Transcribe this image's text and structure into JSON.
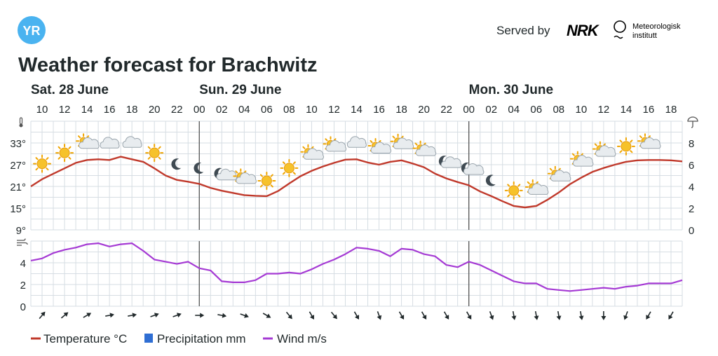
{
  "header": {
    "logo_text": "YR",
    "served_by": "Served by",
    "nrk_logo": "NRK",
    "met_logo_line1": "Meteorologisk",
    "met_logo_line2": "institutt",
    "title": "Weather forecast for Brachwitz"
  },
  "icons": {
    "temperature_axis": "thermometer-icon",
    "precipitation_axis": "umbrella-icon",
    "wind_axis": "wind-icon"
  },
  "colors": {
    "temperature": "#c0392b",
    "precipitation": "#2f6ed3",
    "wind": "#a53ad4",
    "grid": "#d6dde3",
    "day_divider": "#555555",
    "logo_bg": "#4ab3f0"
  },
  "chart_data": {
    "type": "line",
    "title": "Weather forecast for Brachwitz",
    "day_labels": [
      {
        "label": "Sat. 28 June",
        "start_hour": 9
      },
      {
        "label": "Sun. 29 June",
        "start_hour": 24
      },
      {
        "label": "Mon. 30 June",
        "start_hour": 48
      }
    ],
    "x_hours_from_sat_00": {
      "start": 9,
      "end": 67
    },
    "x_tick_labels": [
      "10",
      "12",
      "14",
      "16",
      "18",
      "20",
      "22",
      "00",
      "02",
      "04",
      "06",
      "08",
      "10",
      "12",
      "14",
      "16",
      "18",
      "20",
      "22",
      "00",
      "02",
      "04",
      "06",
      "08",
      "10",
      "12",
      "14",
      "16",
      "18"
    ],
    "x_tick_hours": [
      10,
      12,
      14,
      16,
      18,
      20,
      22,
      24,
      26,
      28,
      30,
      32,
      34,
      36,
      38,
      40,
      42,
      44,
      46,
      48,
      50,
      52,
      54,
      56,
      58,
      60,
      62,
      64,
      66
    ],
    "temperature_axis": {
      "unit": "°C",
      "ylim": [
        9,
        39
      ],
      "ticks": [
        9,
        15,
        21,
        27,
        33
      ]
    },
    "precipitation_axis": {
      "unit": "mm",
      "ylim": [
        0,
        10
      ],
      "ticks": [
        0,
        2,
        4,
        6,
        8
      ]
    },
    "wind_axis": {
      "unit": "m/s",
      "ylim": [
        0,
        6
      ],
      "ticks": [
        0,
        2,
        4
      ]
    },
    "series": [
      {
        "name": "Temperature °C",
        "hours": [
          9,
          10,
          11,
          12,
          13,
          14,
          15,
          16,
          17,
          18,
          19,
          20,
          21,
          22,
          23,
          24,
          25,
          26,
          27,
          28,
          29,
          30,
          31,
          32,
          33,
          34,
          35,
          36,
          37,
          38,
          39,
          40,
          41,
          42,
          43,
          44,
          45,
          46,
          47,
          48,
          49,
          50,
          51,
          52,
          53,
          54,
          55,
          56,
          57,
          58,
          59,
          60,
          61,
          62,
          63,
          64,
          65,
          66,
          67
        ],
        "values": [
          21,
          23,
          24.5,
          26,
          27.5,
          28.3,
          28.5,
          28.3,
          29.2,
          28.5,
          27.8,
          26,
          24,
          22.8,
          22.3,
          21.7,
          20.6,
          19.8,
          19.2,
          18.6,
          18.4,
          18.3,
          19.7,
          21.8,
          23.8,
          25.3,
          26.5,
          27.5,
          28.4,
          28.5,
          27.6,
          27,
          27.8,
          28.2,
          27.3,
          26.3,
          24.5,
          23.2,
          22.2,
          21.3,
          19.6,
          18.3,
          16.9,
          15.6,
          15.2,
          15.6,
          17.3,
          19.3,
          21.6,
          23.4,
          25,
          26.1,
          27,
          27.8,
          28.2,
          28.3,
          28.3,
          28.2,
          27.9
        ]
      },
      {
        "name": "Precipitation mm",
        "hours": [],
        "values": []
      },
      {
        "name": "Wind m/s",
        "hours": [
          9,
          10,
          11,
          12,
          13,
          14,
          15,
          16,
          17,
          18,
          19,
          20,
          21,
          22,
          23,
          24,
          25,
          26,
          27,
          28,
          29,
          30,
          31,
          32,
          33,
          34,
          35,
          36,
          37,
          38,
          39,
          40,
          41,
          42,
          43,
          44,
          45,
          46,
          47,
          48,
          49,
          50,
          51,
          52,
          53,
          54,
          55,
          56,
          57,
          58,
          59,
          60,
          61,
          62,
          63,
          64,
          65,
          66,
          67
        ],
        "values": [
          4.2,
          4.4,
          4.9,
          5.2,
          5.4,
          5.7,
          5.8,
          5.5,
          5.7,
          5.8,
          5.1,
          4.3,
          4.1,
          3.9,
          4.1,
          3.5,
          3.3,
          2.3,
          2.2,
          2.2,
          2.4,
          3,
          3,
          3.1,
          3,
          3.4,
          3.9,
          4.3,
          4.8,
          5.4,
          5.3,
          5.1,
          4.6,
          5.3,
          5.2,
          4.8,
          4.6,
          3.8,
          3.6,
          4.1,
          3.8,
          3.3,
          2.8,
          2.3,
          2.1,
          2.1,
          1.6,
          1.5,
          1.4,
          1.5,
          1.6,
          1.7,
          1.6,
          1.8,
          1.9,
          2.1,
          2.1,
          2.1,
          2.4
        ]
      }
    ],
    "weather_symbols": [
      {
        "hour": 10,
        "icon": "sun-icon"
      },
      {
        "hour": 12,
        "icon": "sun-icon"
      },
      {
        "hour": 14,
        "icon": "partly-cloudy-day-icon"
      },
      {
        "hour": 16,
        "icon": "cloud-icon"
      },
      {
        "hour": 18,
        "icon": "cloud-icon"
      },
      {
        "hour": 20,
        "icon": "sun-icon"
      },
      {
        "hour": 22,
        "icon": "moon-icon"
      },
      {
        "hour": 24,
        "icon": "moon-icon"
      },
      {
        "hour": 26,
        "icon": "partly-cloudy-night-icon"
      },
      {
        "hour": 28,
        "icon": "partly-cloudy-day-icon"
      },
      {
        "hour": 30,
        "icon": "sun-icon"
      },
      {
        "hour": 32,
        "icon": "sun-icon"
      },
      {
        "hour": 34,
        "icon": "partly-cloudy-day-icon"
      },
      {
        "hour": 36,
        "icon": "partly-cloudy-day-icon"
      },
      {
        "hour": 38,
        "icon": "cloud-icon"
      },
      {
        "hour": 40,
        "icon": "partly-cloudy-day-icon"
      },
      {
        "hour": 42,
        "icon": "partly-cloudy-day-icon"
      },
      {
        "hour": 44,
        "icon": "partly-cloudy-day-icon"
      },
      {
        "hour": 46,
        "icon": "partly-cloudy-night-icon"
      },
      {
        "hour": 48,
        "icon": "partly-cloudy-night-icon"
      },
      {
        "hour": 50,
        "icon": "moon-icon"
      },
      {
        "hour": 52,
        "icon": "sun-icon"
      },
      {
        "hour": 54,
        "icon": "partly-cloudy-day-icon"
      },
      {
        "hour": 56,
        "icon": "partly-cloudy-day-icon"
      },
      {
        "hour": 58,
        "icon": "partly-cloudy-day-icon"
      },
      {
        "hour": 60,
        "icon": "partly-cloudy-day-icon"
      },
      {
        "hour": 62,
        "icon": "sun-icon"
      },
      {
        "hour": 64,
        "icon": "partly-cloudy-day-icon"
      }
    ],
    "wind_direction_deg": [
      40,
      50,
      60,
      80,
      80,
      70,
      70,
      90,
      100,
      110,
      120,
      140,
      150,
      140,
      150,
      160,
      150,
      150,
      150,
      150,
      160,
      170,
      170,
      170,
      170,
      180,
      200,
      210,
      210
    ],
    "legend": {
      "placement": "bottom-left"
    }
  }
}
